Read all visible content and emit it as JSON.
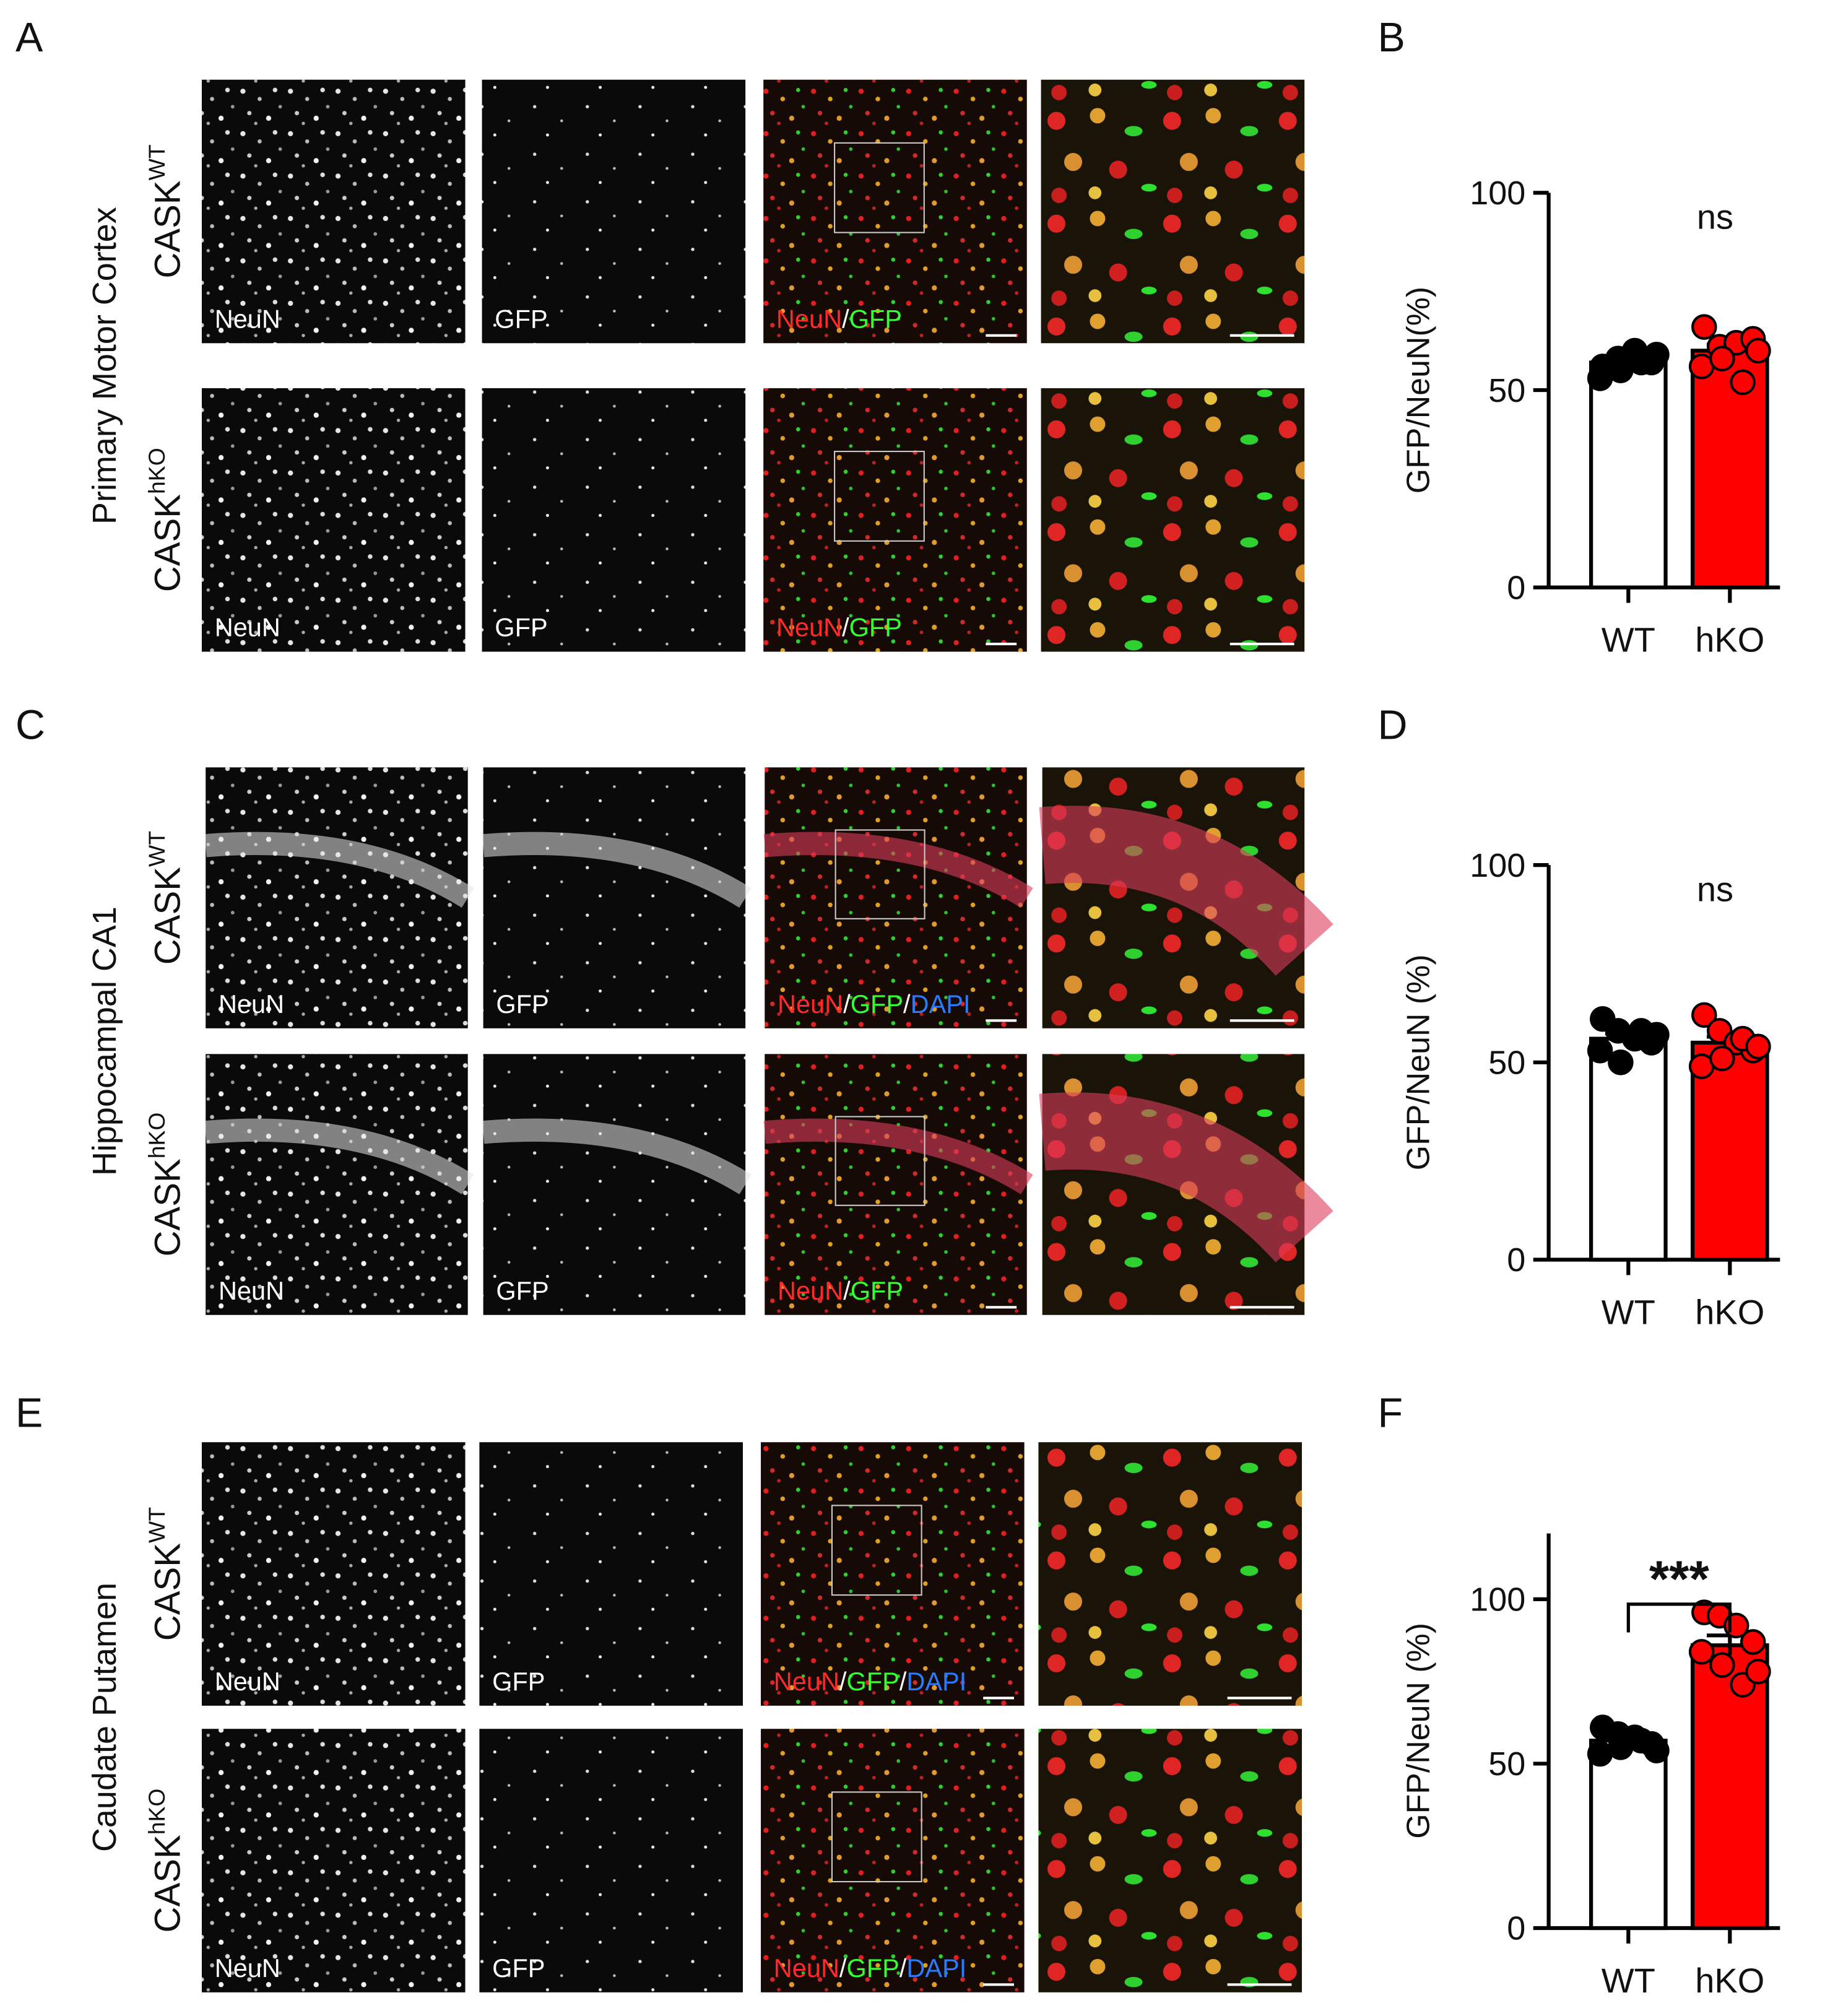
{
  "panels": [
    {
      "letter": "A",
      "region": "Primary Motor Cortex",
      "rows": [
        {
          "genotype": "CASK",
          "superscript": "WT",
          "labels": [
            "NeuN",
            "GFP"
          ],
          "merge": [
            {
              "text": "NeuN",
              "color": "#ff2a2a"
            },
            {
              "text": "/",
              "color": "#ffffff"
            },
            {
              "text": "GFP",
              "color": "#33ff33"
            }
          ]
        },
        {
          "genotype": "CASK",
          "superscript": "hKO",
          "labels": [
            "NeuN",
            "GFP"
          ],
          "merge": [
            {
              "text": "NeuN",
              "color": "#ff2a2a"
            },
            {
              "text": "/",
              "color": "#ffffff"
            },
            {
              "text": "GFP",
              "color": "#33ff33"
            }
          ]
        }
      ]
    },
    {
      "letter": "C",
      "region": "Hippocampal CA1",
      "rows": [
        {
          "genotype": "CASK",
          "superscript": "WT",
          "labels": [
            "NeuN",
            "GFP"
          ],
          "merge": [
            {
              "text": "NeuN",
              "color": "#ff2a2a"
            },
            {
              "text": "/",
              "color": "#ffffff"
            },
            {
              "text": "GFP",
              "color": "#33ff33"
            },
            {
              "text": "/",
              "color": "#ffffff"
            },
            {
              "text": "DAPI",
              "color": "#2a7bff"
            }
          ]
        },
        {
          "genotype": "CASK",
          "superscript": "hKO",
          "labels": [
            "NeuN",
            "GFP"
          ],
          "merge": [
            {
              "text": "NeuN",
              "color": "#ff2a2a"
            },
            {
              "text": "/",
              "color": "#ffffff"
            },
            {
              "text": "GFP",
              "color": "#33ff33"
            }
          ]
        }
      ]
    },
    {
      "letter": "E",
      "region": "Caudate Putamen",
      "rows": [
        {
          "genotype": "CASK",
          "superscript": "WT",
          "labels": [
            "NeuN",
            "GFP"
          ],
          "merge": [
            {
              "text": "NeuN",
              "color": "#ff2a2a"
            },
            {
              "text": "/",
              "color": "#ffffff"
            },
            {
              "text": "GFP",
              "color": "#33ff33"
            },
            {
              "text": "/",
              "color": "#ffffff"
            },
            {
              "text": "DAPI",
              "color": "#2a7bff"
            }
          ]
        },
        {
          "genotype": "CASK",
          "superscript": "hKO",
          "labels": [
            "NeuN",
            "GFP"
          ],
          "merge": [
            {
              "text": "NeuN",
              "color": "#ff2a2a"
            },
            {
              "text": "/",
              "color": "#ffffff"
            },
            {
              "text": "GFP",
              "color": "#33ff33"
            },
            {
              "text": "/",
              "color": "#ffffff"
            },
            {
              "text": "DAPI",
              "color": "#2a7bff"
            }
          ]
        }
      ]
    }
  ],
  "chart_data": [
    {
      "type": "bar",
      "panel_label": "B",
      "ylabel": "GFP/NeuN(%)",
      "categories": [
        "WT",
        "hKO"
      ],
      "values": [
        57,
        60
      ],
      "errors": [
        1,
        1.5
      ],
      "points": [
        [
          56,
          58,
          60,
          57,
          53,
          55,
          57,
          59
        ],
        [
          66,
          61,
          62,
          63,
          56,
          58,
          52,
          60
        ]
      ],
      "colors": [
        "#ffffff",
        "#ff0000"
      ],
      "annotation": "ns",
      "ylim": [
        0,
        100
      ],
      "yticks": [
        0,
        50,
        100
      ]
    },
    {
      "type": "bar",
      "panel_label": "D",
      "ylabel": "GFP/NeuN (%)",
      "categories": [
        "WT",
        "hKO"
      ],
      "values": [
        56,
        55
      ],
      "errors": [
        1.3,
        1.5
      ],
      "points": [
        [
          61,
          58,
          56,
          55,
          53,
          50,
          58,
          57
        ],
        [
          62,
          58,
          55,
          53,
          49,
          51,
          56,
          54
        ]
      ],
      "colors": [
        "#ffffff",
        "#ff0000"
      ],
      "annotation": "ns",
      "ylim": [
        0,
        100
      ],
      "yticks": [
        0,
        50,
        100
      ]
    },
    {
      "type": "bar",
      "panel_label": "F",
      "ylabel": "GFP/NeuN (%)",
      "categories": [
        "WT",
        "hKO"
      ],
      "values": [
        57,
        86
      ],
      "errors": [
        1.2,
        3
      ],
      "points": [
        [
          61,
          59,
          58,
          56,
          53,
          55,
          57,
          54
        ],
        [
          96,
          95,
          92,
          87,
          84,
          80,
          74,
          78
        ]
      ],
      "colors": [
        "#ffffff",
        "#ff0000"
      ],
      "annotation": "***",
      "ylim": [
        0,
        120
      ],
      "yticks": [
        0,
        50,
        100
      ]
    }
  ]
}
